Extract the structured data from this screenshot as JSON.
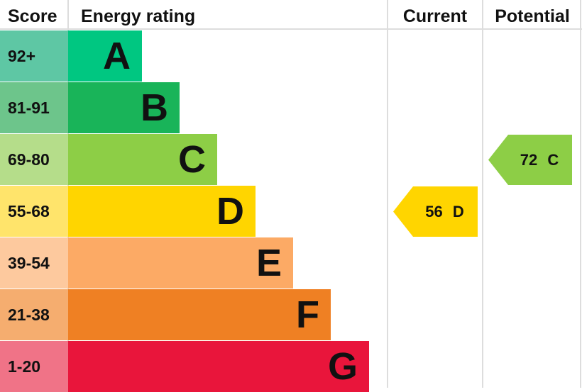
{
  "headers": {
    "score": "Score",
    "rating": "Energy rating",
    "current": "Current",
    "potential": "Potential"
  },
  "chart_data": {
    "type": "table",
    "bands": [
      {
        "letter": "A",
        "range": "92+",
        "color": "#00c781",
        "score_color": "#5ec7a4"
      },
      {
        "letter": "B",
        "range": "81-91",
        "color": "#19b459",
        "score_color": "#6dc58b"
      },
      {
        "letter": "C",
        "range": "69-80",
        "color": "#8dce46",
        "score_color": "#b5dd8a"
      },
      {
        "letter": "D",
        "range": "55-68",
        "color": "#ffd500",
        "score_color": "#ffe46b"
      },
      {
        "letter": "E",
        "range": "39-54",
        "color": "#fcaa65",
        "score_color": "#fdc99e"
      },
      {
        "letter": "F",
        "range": "21-38",
        "color": "#ef8023",
        "score_color": "#f5ad6f"
      },
      {
        "letter": "G",
        "range": "1-20",
        "color": "#e9153b",
        "score_color": "#f07387"
      }
    ],
    "current": {
      "score": 56,
      "band": "D",
      "label": "56 D"
    },
    "potential": {
      "score": 72,
      "band": "C",
      "label": "72 C"
    }
  }
}
